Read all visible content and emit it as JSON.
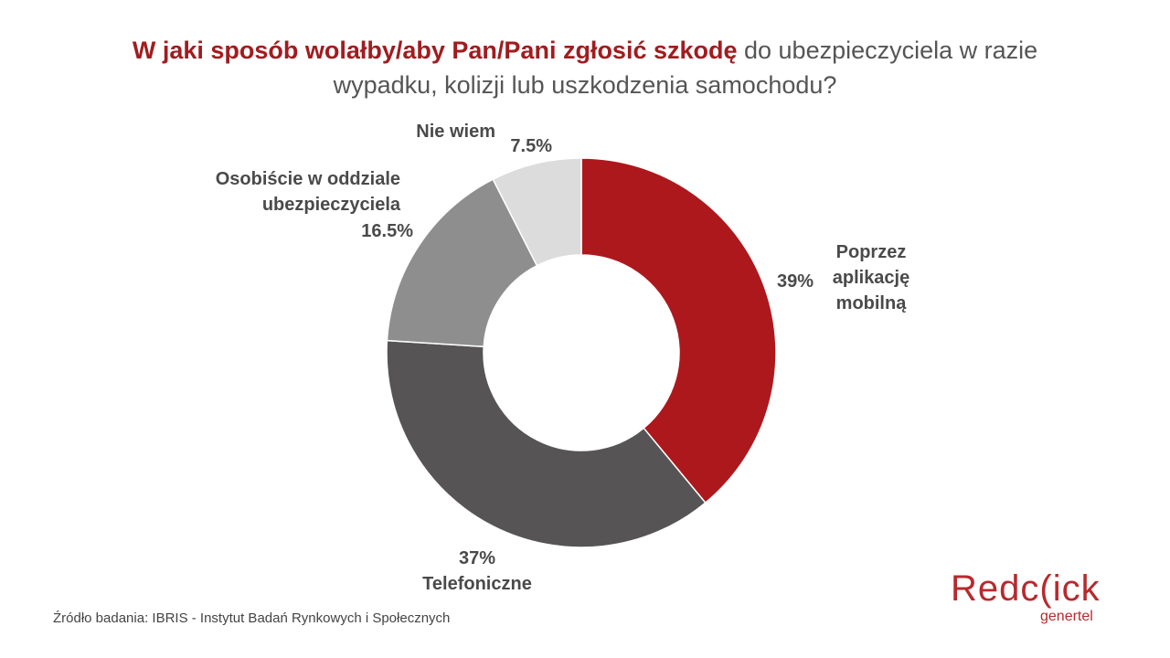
{
  "title": {
    "highlight": "W jaki sposób wolałby/aby Pan/Pani zgłosić szkodę",
    "rest": " do ubezpieczyciela w razie wypadku, kolizji lub uszkodzenia samochodu?"
  },
  "chart_data": {
    "type": "pie",
    "donut": true,
    "title": "W jaki sposób wolałby/aby Pan/Pani zgłosić szkodę do ubezpieczyciela w razie wypadku, kolizji lub uszkodzenia samochodu?",
    "slices": [
      {
        "label": "Poprzez aplikację mobilną",
        "label_lines": [
          "Poprzez",
          "aplikację",
          "mobilną"
        ],
        "value": 39,
        "value_label": "39%",
        "color": "#ad181d"
      },
      {
        "label": "Telefoniczne",
        "label_lines": [
          "Telefoniczne"
        ],
        "value": 37,
        "value_label": "37%",
        "color": "#565455"
      },
      {
        "label": "Osobiście w oddziale ubezpieczyciela",
        "label_lines": [
          "Osobiście w oddziale",
          "ubezpieczyciela"
        ],
        "value": 16.5,
        "value_label": "16.5%",
        "color": "#8f8e8e"
      },
      {
        "label": "Nie wiem",
        "label_lines": [
          "Nie wiem"
        ],
        "value": 7.5,
        "value_label": "7.5%",
        "color": "#dcdcdc"
      }
    ]
  },
  "source": "Źródło badania: IBRIS - Instytut Badań Rynkowych i Społecznych",
  "logo": {
    "brand": "Redc(ick",
    "sub": "genertel",
    "color": "#b72a2d"
  }
}
